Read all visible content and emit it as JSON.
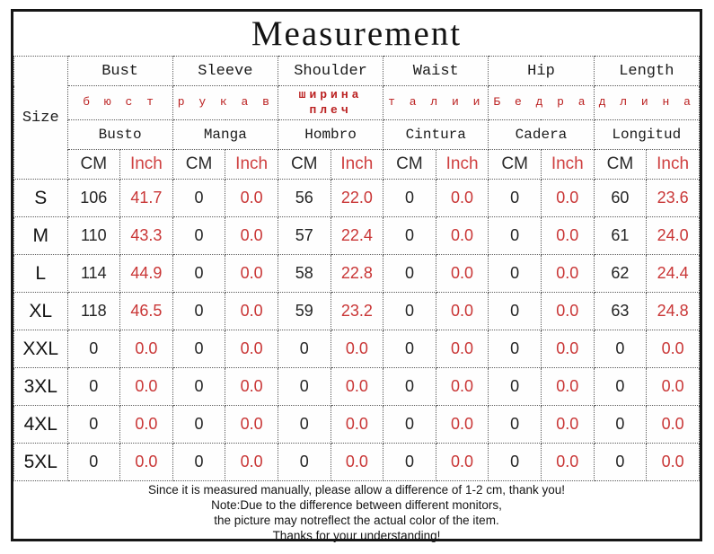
{
  "title": "Measurement",
  "colors": {
    "border_black": "#161616",
    "text_black": "#1b1b1b",
    "red_inch_header": "#cf4040",
    "red_values": "#c93636",
    "red_russian": "#bb2121"
  },
  "table": {
    "size_label": "Size",
    "unit_cm": "CM",
    "unit_inch": "Inch",
    "columns": [
      {
        "en": "Bust",
        "ru": "б ю с т",
        "es": "Busto",
        "ru_bold": false
      },
      {
        "en": "Sleeve",
        "ru": "р у к а в",
        "es": "Manga",
        "ru_bold": false
      },
      {
        "en": "Shoulder",
        "ru": "ширина плеч",
        "es": "Hombro",
        "ru_bold": true
      },
      {
        "en": "Waist",
        "ru": "т а л и и",
        "es": "Cintura",
        "ru_bold": false
      },
      {
        "en": "Hip",
        "ru": "Б е д р а",
        "es": "Cadera",
        "ru_bold": false
      },
      {
        "en": "Length",
        "ru": "д л и н а",
        "es": "Longitud",
        "ru_bold": false
      }
    ],
    "rows": [
      {
        "size": "S",
        "values": [
          [
            "106",
            "41.7"
          ],
          [
            "0",
            "0.0"
          ],
          [
            "56",
            "22.0"
          ],
          [
            "0",
            "0.0"
          ],
          [
            "0",
            "0.0"
          ],
          [
            "60",
            "23.6"
          ]
        ]
      },
      {
        "size": "M",
        "values": [
          [
            "110",
            "43.3"
          ],
          [
            "0",
            "0.0"
          ],
          [
            "57",
            "22.4"
          ],
          [
            "0",
            "0.0"
          ],
          [
            "0",
            "0.0"
          ],
          [
            "61",
            "24.0"
          ]
        ]
      },
      {
        "size": "L",
        "values": [
          [
            "114",
            "44.9"
          ],
          [
            "0",
            "0.0"
          ],
          [
            "58",
            "22.8"
          ],
          [
            "0",
            "0.0"
          ],
          [
            "0",
            "0.0"
          ],
          [
            "62",
            "24.4"
          ]
        ]
      },
      {
        "size": "XL",
        "values": [
          [
            "118",
            "46.5"
          ],
          [
            "0",
            "0.0"
          ],
          [
            "59",
            "23.2"
          ],
          [
            "0",
            "0.0"
          ],
          [
            "0",
            "0.0"
          ],
          [
            "63",
            "24.8"
          ]
        ]
      },
      {
        "size": "XXL",
        "values": [
          [
            "0",
            "0.0"
          ],
          [
            "0",
            "0.0"
          ],
          [
            "0",
            "0.0"
          ],
          [
            "0",
            "0.0"
          ],
          [
            "0",
            "0.0"
          ],
          [
            "0",
            "0.0"
          ]
        ]
      },
      {
        "size": "3XL",
        "values": [
          [
            "0",
            "0.0"
          ],
          [
            "0",
            "0.0"
          ],
          [
            "0",
            "0.0"
          ],
          [
            "0",
            "0.0"
          ],
          [
            "0",
            "0.0"
          ],
          [
            "0",
            "0.0"
          ]
        ]
      },
      {
        "size": "4XL",
        "values": [
          [
            "0",
            "0.0"
          ],
          [
            "0",
            "0.0"
          ],
          [
            "0",
            "0.0"
          ],
          [
            "0",
            "0.0"
          ],
          [
            "0",
            "0.0"
          ],
          [
            "0",
            "0.0"
          ]
        ]
      },
      {
        "size": "5XL",
        "values": [
          [
            "0",
            "0.0"
          ],
          [
            "0",
            "0.0"
          ],
          [
            "0",
            "0.0"
          ],
          [
            "0",
            "0.0"
          ],
          [
            "0",
            "0.0"
          ],
          [
            "0",
            "0.0"
          ]
        ]
      }
    ]
  },
  "footer": {
    "lines": [
      "Since it is measured manually, please allow a difference of 1-2 cm, thank you!",
      "Note:Due to the difference between different monitors,",
      "the picture may notreflect the actual color of the item.",
      "Thanks for your understanding!"
    ]
  }
}
